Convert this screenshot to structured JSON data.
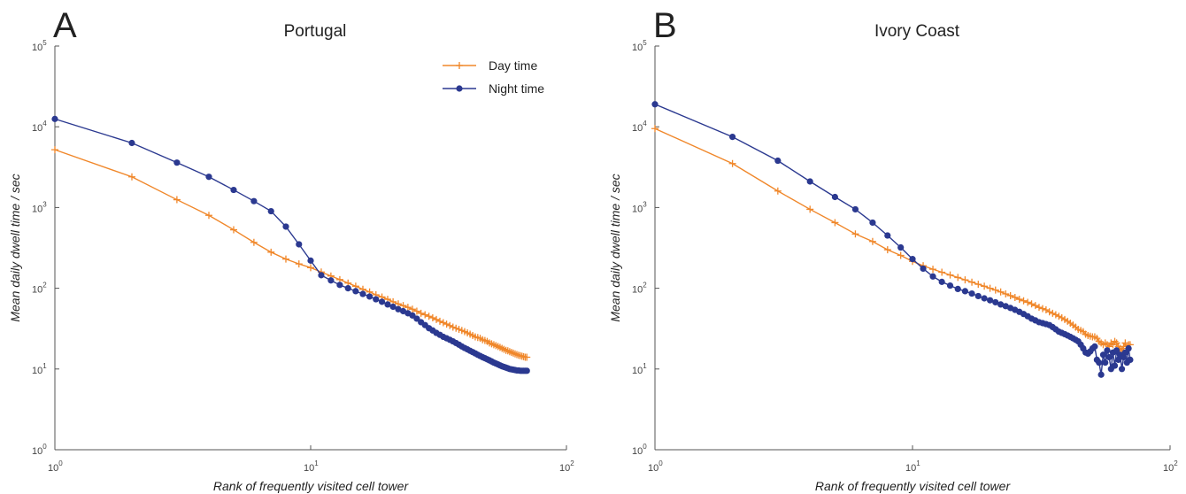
{
  "chart_data": [
    {
      "type": "line",
      "panel_label": "A",
      "title": "Portugal",
      "xlabel": "Rank of frequently visited cell tower",
      "ylabel": "Mean daily dwell time / sec",
      "xscale": "log",
      "yscale": "log",
      "legend": "upper right",
      "xlim": [
        1,
        100
      ],
      "ylim": [
        1,
        100000
      ],
      "xticks": [
        {
          "value": 1,
          "label": "10",
          "exponent": "0"
        },
        {
          "value": 10,
          "label": "10",
          "exponent": "1"
        },
        {
          "value": 100,
          "label": "10",
          "exponent": "2"
        }
      ],
      "yticks": [
        {
          "value": 1,
          "label": "10",
          "exponent": "0"
        },
        {
          "value": 10,
          "label": "10",
          "exponent": "1"
        },
        {
          "value": 100,
          "label": "10",
          "exponent": "2"
        },
        {
          "value": 1000,
          "label": "10",
          "exponent": "3"
        },
        {
          "value": 10000,
          "label": "10",
          "exponent": "4"
        },
        {
          "value": 100000,
          "label": "10",
          "exponent": "5"
        }
      ],
      "x": [
        1,
        2,
        3,
        4,
        5,
        6,
        7,
        8,
        9,
        10,
        11,
        12,
        13,
        14,
        15,
        16,
        17,
        18,
        19,
        20,
        21,
        22,
        23,
        24,
        25,
        26,
        27,
        28,
        29,
        30,
        31,
        32,
        33,
        34,
        35,
        36,
        37,
        38,
        39,
        40,
        41,
        42,
        43,
        44,
        45,
        46,
        47,
        48,
        49,
        50,
        51,
        52,
        53,
        54,
        55,
        56,
        57,
        58,
        59,
        60,
        61,
        62,
        63,
        64,
        65,
        66,
        67,
        68,
        69,
        70
      ],
      "series": [
        {
          "name": "Day time",
          "color": "#f0872a",
          "marker": "plus",
          "values": [
            5200,
            2400,
            1250,
            800,
            530,
            370,
            280,
            230,
            200,
            180,
            159,
            142,
            128,
            116,
            106,
            97,
            90,
            83,
            78,
            73,
            68,
            64,
            61,
            58,
            55,
            52,
            49,
            47,
            45,
            43,
            41,
            39,
            37.5,
            36,
            34.5,
            33,
            32,
            31,
            30,
            29,
            28,
            27,
            26,
            25,
            24.5,
            24,
            23,
            22.5,
            22,
            21,
            20.5,
            20,
            19.5,
            19,
            18.5,
            18,
            17.5,
            17,
            16.8,
            16.4,
            16,
            15.7,
            15.4,
            15.1,
            14.8,
            14.6,
            14.4,
            14.2,
            14,
            14
          ]
        },
        {
          "name": "Night time",
          "color": "#2b3990",
          "marker": "circle",
          "values": [
            12500,
            6300,
            3600,
            2400,
            1650,
            1200,
            900,
            580,
            350,
            220,
            145,
            125,
            110,
            100,
            92,
            85,
            79,
            73,
            68,
            63,
            59,
            55,
            52,
            49,
            46,
            42,
            38,
            35,
            32,
            30,
            28,
            26.5,
            25,
            24,
            23,
            22,
            21,
            20,
            19,
            18.2,
            17.5,
            16.8,
            16.2,
            15.6,
            15,
            14.5,
            14,
            13.6,
            13.2,
            12.8,
            12.4,
            12,
            11.7,
            11.4,
            11.1,
            10.8,
            10.6,
            10.4,
            10.2,
            10,
            9.9,
            9.8,
            9.7,
            9.6,
            9.6,
            9.5,
            9.5,
            9.5,
            9.5,
            9.5
          ]
        }
      ]
    },
    {
      "type": "line",
      "panel_label": "B",
      "title": "Ivory Coast",
      "xlabel": "Rank of frequently visited cell tower",
      "ylabel": "Mean daily dwell time / sec",
      "xscale": "log",
      "yscale": "log",
      "legend": false,
      "xlim": [
        1,
        100
      ],
      "ylim": [
        1,
        100000
      ],
      "xticks": [
        {
          "value": 1,
          "label": "10",
          "exponent": "0"
        },
        {
          "value": 10,
          "label": "10",
          "exponent": "1"
        },
        {
          "value": 100,
          "label": "10",
          "exponent": "2"
        }
      ],
      "yticks": [
        {
          "value": 1,
          "label": "10",
          "exponent": "0"
        },
        {
          "value": 10,
          "label": "10",
          "exponent": "1"
        },
        {
          "value": 100,
          "label": "10",
          "exponent": "2"
        },
        {
          "value": 1000,
          "label": "10",
          "exponent": "3"
        },
        {
          "value": 10000,
          "label": "10",
          "exponent": "4"
        },
        {
          "value": 100000,
          "label": "10",
          "exponent": "5"
        }
      ],
      "x": [
        1,
        2,
        3,
        4,
        5,
        6,
        7,
        8,
        9,
        10,
        11,
        12,
        13,
        14,
        15,
        16,
        17,
        18,
        19,
        20,
        21,
        22,
        23,
        24,
        25,
        26,
        27,
        28,
        29,
        30,
        31,
        32,
        33,
        34,
        35,
        36,
        37,
        38,
        39,
        40,
        41,
        42,
        43,
        44,
        45,
        46,
        47,
        48,
        49,
        50,
        51,
        52,
        53,
        54,
        55,
        56,
        57,
        58,
        59,
        60,
        61,
        62,
        63,
        64,
        65,
        66,
        67,
        68,
        69,
        70
      ],
      "series": [
        {
          "name": "Day time",
          "color": "#f0872a",
          "marker": "plus",
          "values": [
            9500,
            3500,
            1600,
            950,
            650,
            470,
            380,
            300,
            255,
            215,
            190,
            172,
            158,
            146,
            136,
            127,
            119,
            112,
            106,
            100,
            95,
            90,
            85,
            81,
            77,
            73,
            70,
            67,
            64,
            61,
            58,
            56,
            54,
            51,
            49,
            47,
            45,
            43,
            41,
            39,
            37,
            35,
            33,
            31,
            30,
            29,
            27,
            26,
            25.5,
            25,
            25,
            24,
            22,
            21,
            20,
            21,
            20,
            19,
            21,
            20,
            22,
            21,
            19,
            18,
            17,
            19,
            21,
            18,
            20,
            20
          ]
        },
        {
          "name": "Night time",
          "color": "#2b3990",
          "marker": "circle",
          "values": [
            19000,
            7500,
            3800,
            2100,
            1350,
            950,
            650,
            450,
            320,
            230,
            175,
            140,
            120,
            108,
            98,
            92,
            86,
            80,
            75,
            71,
            67,
            63,
            60,
            57,
            54,
            51,
            48,
            45,
            42,
            40,
            38,
            37,
            36,
            35,
            33,
            31,
            29,
            28,
            27,
            26,
            25,
            24,
            23,
            22,
            20,
            18,
            16,
            15.5,
            16.5,
            18,
            19,
            13,
            12,
            8.5,
            15,
            12,
            17,
            14,
            10,
            16,
            11,
            17,
            13,
            15,
            10,
            14,
            16,
            12,
            18,
            13
          ]
        }
      ]
    }
  ]
}
